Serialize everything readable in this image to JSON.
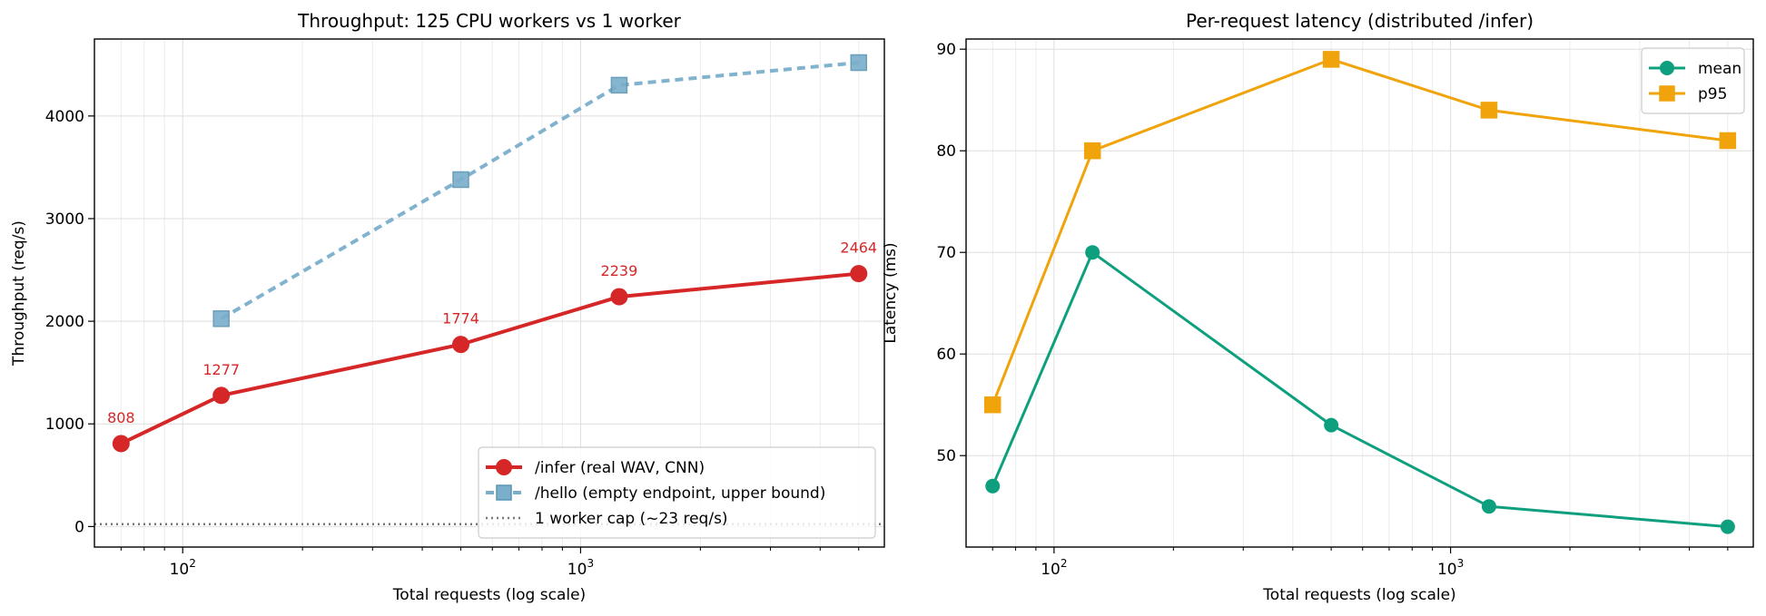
{
  "chart_data": [
    {
      "type": "line",
      "title": "Throughput: 125 CPU workers vs 1 worker",
      "xlabel": "Total requests (log scale)",
      "ylabel": "Throughput (req/s)",
      "xscale": "log",
      "xlim": [
        60,
        5800
      ],
      "ylim": [
        -200,
        4750
      ],
      "xticks": [
        {
          "value": 100,
          "base": "10",
          "exp": "2"
        },
        {
          "value": 1000,
          "base": "10",
          "exp": "3"
        }
      ],
      "yticks": [
        0,
        1000,
        2000,
        3000,
        4000
      ],
      "grid": true,
      "legend_position": "lower right",
      "series": [
        {
          "name": "/infer (real WAV, CNN)",
          "x": [
            70,
            125,
            500,
            1250,
            5000
          ],
          "y": [
            808,
            1277,
            1774,
            2239,
            2464
          ],
          "color": "#d62728",
          "marker": "circle",
          "style": "solid",
          "labels": [
            "808",
            "1277",
            "1774",
            "2239",
            "2464"
          ]
        },
        {
          "name": "/hello (empty endpoint, upper bound)",
          "x": [
            125,
            500,
            1250,
            5000
          ],
          "y": [
            2025,
            3380,
            4300,
            4520
          ],
          "color": "#7aaecb",
          "marker": "square",
          "style": "dashed"
        },
        {
          "name": "1 worker cap (~23 req/s)",
          "hline": 23,
          "color": "#777777",
          "style": "dotted"
        }
      ]
    },
    {
      "type": "line",
      "title": "Per-request latency (distributed /infer)",
      "xlabel": "Total requests (log scale)",
      "ylabel": "Latency (ms)",
      "xscale": "log",
      "xlim": [
        60,
        5800
      ],
      "ylim": [
        41,
        91
      ],
      "xticks": [
        {
          "value": 100,
          "base": "10",
          "exp": "2"
        },
        {
          "value": 1000,
          "base": "10",
          "exp": "3"
        }
      ],
      "yticks": [
        50,
        60,
        70,
        80,
        90
      ],
      "grid": true,
      "legend_position": "upper right",
      "series": [
        {
          "name": "mean",
          "x": [
            70,
            125,
            500,
            1250,
            5000
          ],
          "y": [
            47,
            70,
            53,
            45,
            43
          ],
          "color": "#0ea07e",
          "marker": "circle",
          "style": "solid"
        },
        {
          "name": "p95",
          "x": [
            70,
            125,
            500,
            1250,
            5000
          ],
          "y": [
            55,
            80,
            89,
            84,
            81
          ],
          "color": "#f0a30a",
          "marker": "square",
          "style": "solid"
        }
      ]
    }
  ]
}
